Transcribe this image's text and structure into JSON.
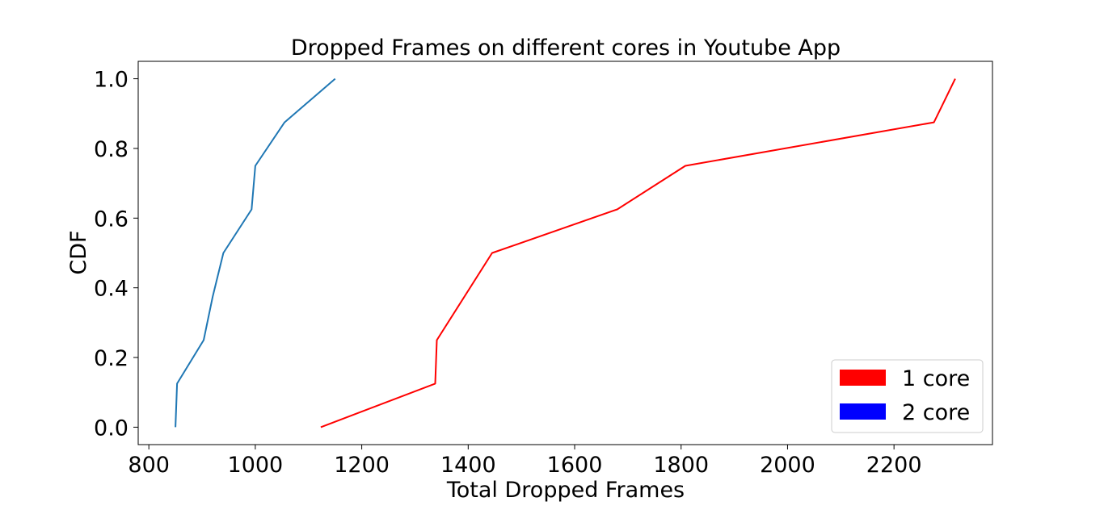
{
  "chart_data": {
    "type": "line",
    "title": "Dropped Frames on different cores in Youtube App",
    "xlabel": "Total Dropped Frames",
    "ylabel": "CDF",
    "xlim": [
      780,
      2385
    ],
    "ylim": [
      -0.05,
      1.05
    ],
    "xticks": [
      800,
      1000,
      1200,
      1400,
      1600,
      1800,
      2000,
      2200
    ],
    "xtick_labels": [
      "800",
      "1000",
      "1200",
      "1400",
      "1600",
      "1800",
      "2000",
      "2200"
    ],
    "yticks": [
      0.0,
      0.2,
      0.4,
      0.6,
      0.8,
      1.0
    ],
    "ytick_labels": [
      "0.0",
      "0.2",
      "0.4",
      "0.6",
      "0.8",
      "1.0"
    ],
    "grid": false,
    "legend_position": "bottom-right",
    "legend": [
      {
        "label": "1 core",
        "color": "#ff0000"
      },
      {
        "label": "2 core",
        "color": "#0000ff"
      }
    ],
    "series": [
      {
        "color": "#ff0000",
        "x": [
          1123,
          1338,
          1341,
          1445,
          1680,
          1808,
          2275,
          2315
        ],
        "y": [
          0.0,
          0.125,
          0.25,
          0.5,
          0.625,
          0.75,
          0.875,
          1.0
        ]
      },
      {
        "color": "#1f77b4",
        "x": [
          850,
          853,
          903,
          920,
          940,
          993,
          1000,
          1055,
          1150
        ],
        "y": [
          0.0,
          0.125,
          0.25,
          0.375,
          0.5,
          0.625,
          0.75,
          0.875,
          1.0
        ]
      }
    ]
  }
}
